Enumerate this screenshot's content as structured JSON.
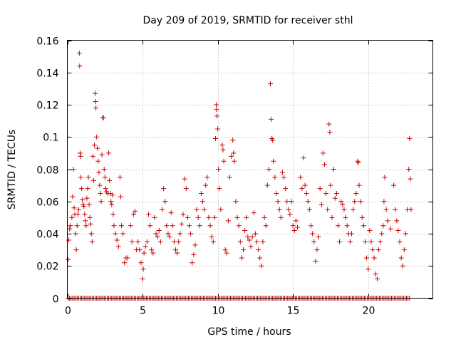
{
  "chart_data": {
    "type": "scatter",
    "title": "Day 209 of 2019, SRMTID for receiver sthl",
    "xlabel": "GPS time / hours",
    "ylabel": "SRMTID / TECUs",
    "xlim": [
      0,
      24.3
    ],
    "ylim": [
      0,
      0.16
    ],
    "xticks": [
      0,
      5,
      10,
      15,
      20
    ],
    "xtick_labels": [
      "0",
      "5",
      "10",
      "15",
      "20"
    ],
    "yticks": [
      0,
      0.02,
      0.04,
      0.06,
      0.08,
      0.1,
      0.12,
      0.14,
      0.16
    ],
    "ytick_labels": [
      "0",
      "0.02",
      "0.04",
      "0.06",
      "0.08",
      "0.1",
      "0.12",
      "0.14",
      "0.16"
    ],
    "grid": true,
    "marker": "+",
    "color": "#cc0000",
    "zero_baseline": {
      "x_start": 0.05,
      "x_end": 22.8,
      "step": 0.1,
      "y": 0
    },
    "series": [
      {
        "name": "sthl",
        "points": [
          [
            0.05,
            0.024
          ],
          [
            0.1,
            0.036
          ],
          [
            0.15,
            0.043
          ],
          [
            0.2,
            0.045
          ],
          [
            0.3,
            0.05
          ],
          [
            0.35,
            0.063
          ],
          [
            0.4,
            0.08
          ],
          [
            0.45,
            0.056
          ],
          [
            0.5,
            0.052
          ],
          [
            0.55,
            0.04
          ],
          [
            0.6,
            0.03
          ],
          [
            0.65,
            0.045
          ],
          [
            0.7,
            0.052
          ],
          [
            0.75,
            0.055
          ],
          [
            0.8,
            0.152
          ],
          [
            0.82,
            0.144
          ],
          [
            0.85,
            0.09
          ],
          [
            0.88,
            0.088
          ],
          [
            0.9,
            0.075
          ],
          [
            0.95,
            0.068
          ],
          [
            1.0,
            0.061
          ],
          [
            1.05,
            0.058
          ],
          [
            1.1,
            0.057
          ],
          [
            1.15,
            0.052
          ],
          [
            1.2,
            0.048
          ],
          [
            1.25,
            0.045
          ],
          [
            1.3,
            0.062
          ],
          [
            1.35,
            0.068
          ],
          [
            1.4,
            0.075
          ],
          [
            1.45,
            0.058
          ],
          [
            1.5,
            0.05
          ],
          [
            1.55,
            0.046
          ],
          [
            1.6,
            0.04
          ],
          [
            1.65,
            0.035
          ],
          [
            1.7,
            0.088
          ],
          [
            1.75,
            0.073
          ],
          [
            1.8,
            0.095
          ],
          [
            1.85,
            0.127
          ],
          [
            1.88,
            0.122
          ],
          [
            1.9,
            0.118
          ],
          [
            1.95,
            0.1
          ],
          [
            2.0,
            0.093
          ],
          [
            2.05,
            0.085
          ],
          [
            2.1,
            0.078
          ],
          [
            2.15,
            0.07
          ],
          [
            2.2,
            0.065
          ],
          [
            2.25,
            0.06
          ],
          [
            2.3,
            0.089
          ],
          [
            2.35,
            0.112
          ],
          [
            2.4,
            0.112
          ],
          [
            2.45,
            0.08
          ],
          [
            2.5,
            0.075
          ],
          [
            2.55,
            0.068
          ],
          [
            2.6,
            0.066
          ],
          [
            2.7,
            0.065
          ],
          [
            2.75,
            0.09
          ],
          [
            2.8,
            0.073
          ],
          [
            2.85,
            0.065
          ],
          [
            2.9,
            0.06
          ],
          [
            2.95,
            0.058
          ],
          [
            3.0,
            0.064
          ],
          [
            3.05,
            0.052
          ],
          [
            3.1,
            0.045
          ],
          [
            3.2,
            0.04
          ],
          [
            3.3,
            0.036
          ],
          [
            3.4,
            0.032
          ],
          [
            3.5,
            0.075
          ],
          [
            3.55,
            0.063
          ],
          [
            3.6,
            0.045
          ],
          [
            3.7,
            0.04
          ],
          [
            3.8,
            0.022
          ],
          [
            3.9,
            0.025
          ],
          [
            4.0,
            0.025
          ],
          [
            4.2,
            0.045
          ],
          [
            4.3,
            0.035
          ],
          [
            4.4,
            0.052
          ],
          [
            4.5,
            0.054
          ],
          [
            4.6,
            0.03
          ],
          [
            4.7,
            0.035
          ],
          [
            4.8,
            0.03
          ],
          [
            4.9,
            0.022
          ],
          [
            5.0,
            0.012
          ],
          [
            5.05,
            0.018
          ],
          [
            5.1,
            0.028
          ],
          [
            5.2,
            0.032
          ],
          [
            5.3,
            0.035
          ],
          [
            5.4,
            0.052
          ],
          [
            5.5,
            0.045
          ],
          [
            5.6,
            0.03
          ],
          [
            5.7,
            0.028
          ],
          [
            5.8,
            0.05
          ],
          [
            5.9,
            0.04
          ],
          [
            6.0,
            0.038
          ],
          [
            6.1,
            0.042
          ],
          [
            6.2,
            0.035
          ],
          [
            6.3,
            0.055
          ],
          [
            6.4,
            0.068
          ],
          [
            6.5,
            0.06
          ],
          [
            6.6,
            0.045
          ],
          [
            6.7,
            0.04
          ],
          [
            6.8,
            0.038
          ],
          [
            6.9,
            0.053
          ],
          [
            7.0,
            0.045
          ],
          [
            7.1,
            0.035
          ],
          [
            7.2,
            0.03
          ],
          [
            7.3,
            0.028
          ],
          [
            7.4,
            0.035
          ],
          [
            7.5,
            0.04
          ],
          [
            7.6,
            0.046
          ],
          [
            7.7,
            0.052
          ],
          [
            7.8,
            0.074
          ],
          [
            7.9,
            0.068
          ],
          [
            8.0,
            0.05
          ],
          [
            8.1,
            0.045
          ],
          [
            8.2,
            0.04
          ],
          [
            8.3,
            0.022
          ],
          [
            8.4,
            0.027
          ],
          [
            8.5,
            0.033
          ],
          [
            8.6,
            0.055
          ],
          [
            8.7,
            0.05
          ],
          [
            8.8,
            0.045
          ],
          [
            8.9,
            0.065
          ],
          [
            9.0,
            0.06
          ],
          [
            9.1,
            0.055
          ],
          [
            9.2,
            0.07
          ],
          [
            9.3,
            0.075
          ],
          [
            9.4,
            0.05
          ],
          [
            9.5,
            0.045
          ],
          [
            9.6,
            0.038
          ],
          [
            9.7,
            0.035
          ],
          [
            9.8,
            0.05
          ],
          [
            9.85,
            0.099
          ],
          [
            9.9,
            0.12
          ],
          [
            9.92,
            0.117
          ],
          [
            9.95,
            0.113
          ],
          [
            10.0,
            0.105
          ],
          [
            10.05,
            0.08
          ],
          [
            10.1,
            0.068
          ],
          [
            10.2,
            0.055
          ],
          [
            10.3,
            0.095
          ],
          [
            10.35,
            0.092
          ],
          [
            10.4,
            0.085
          ],
          [
            10.5,
            0.03
          ],
          [
            10.6,
            0.028
          ],
          [
            10.7,
            0.048
          ],
          [
            10.8,
            0.075
          ],
          [
            10.9,
            0.088
          ],
          [
            11.0,
            0.098
          ],
          [
            11.05,
            0.09
          ],
          [
            11.1,
            0.085
          ],
          [
            11.2,
            0.06
          ],
          [
            11.3,
            0.05
          ],
          [
            11.4,
            0.045
          ],
          [
            11.5,
            0.035
          ],
          [
            11.6,
            0.025
          ],
          [
            11.7,
            0.03
          ],
          [
            11.8,
            0.042
          ],
          [
            11.9,
            0.05
          ],
          [
            12.0,
            0.038
          ],
          [
            12.1,
            0.036
          ],
          [
            12.2,
            0.032
          ],
          [
            12.3,
            0.038
          ],
          [
            12.4,
            0.053
          ],
          [
            12.5,
            0.04
          ],
          [
            12.6,
            0.035
          ],
          [
            12.7,
            0.03
          ],
          [
            12.8,
            0.025
          ],
          [
            12.9,
            0.02
          ],
          [
            13.0,
            0.035
          ],
          [
            13.1,
            0.05
          ],
          [
            13.2,
            0.045
          ],
          [
            13.3,
            0.07
          ],
          [
            13.4,
            0.08
          ],
          [
            13.5,
            0.133
          ],
          [
            13.55,
            0.111
          ],
          [
            13.6,
            0.099
          ],
          [
            13.65,
            0.098
          ],
          [
            13.7,
            0.085
          ],
          [
            13.8,
            0.075
          ],
          [
            13.9,
            0.065
          ],
          [
            14.0,
            0.06
          ],
          [
            14.1,
            0.055
          ],
          [
            14.2,
            0.05
          ],
          [
            14.3,
            0.078
          ],
          [
            14.4,
            0.075
          ],
          [
            14.5,
            0.068
          ],
          [
            14.6,
            0.06
          ],
          [
            14.7,
            0.055
          ],
          [
            14.8,
            0.052
          ],
          [
            14.9,
            0.06
          ],
          [
            15.0,
            0.045
          ],
          [
            15.1,
            0.042
          ],
          [
            15.2,
            0.048
          ],
          [
            15.3,
            0.044
          ],
          [
            15.5,
            0.075
          ],
          [
            15.6,
            0.068
          ],
          [
            15.7,
            0.087
          ],
          [
            15.8,
            0.07
          ],
          [
            15.9,
            0.065
          ],
          [
            16.0,
            0.06
          ],
          [
            16.1,
            0.055
          ],
          [
            16.2,
            0.045
          ],
          [
            16.3,
            0.04
          ],
          [
            16.4,
            0.035
          ],
          [
            16.5,
            0.023
          ],
          [
            16.6,
            0.03
          ],
          [
            16.7,
            0.038
          ],
          [
            16.8,
            0.068
          ],
          [
            16.9,
            0.058
          ],
          [
            17.0,
            0.09
          ],
          [
            17.1,
            0.083
          ],
          [
            17.2,
            0.065
          ],
          [
            17.3,
            0.055
          ],
          [
            17.4,
            0.108
          ],
          [
            17.45,
            0.103
          ],
          [
            17.5,
            0.07
          ],
          [
            17.6,
            0.05
          ],
          [
            17.7,
            0.08
          ],
          [
            17.8,
            0.062
          ],
          [
            17.9,
            0.065
          ],
          [
            18.0,
            0.045
          ],
          [
            18.1,
            0.035
          ],
          [
            18.2,
            0.06
          ],
          [
            18.3,
            0.058
          ],
          [
            18.4,
            0.055
          ],
          [
            18.5,
            0.05
          ],
          [
            18.6,
            0.045
          ],
          [
            18.7,
            0.04
          ],
          [
            18.8,
            0.035
          ],
          [
            18.9,
            0.04
          ],
          [
            19.0,
            0.055
          ],
          [
            19.1,
            0.06
          ],
          [
            19.2,
            0.065
          ],
          [
            19.3,
            0.085
          ],
          [
            19.35,
            0.084
          ],
          [
            19.4,
            0.07
          ],
          [
            19.5,
            0.06
          ],
          [
            19.6,
            0.05
          ],
          [
            19.7,
            0.045
          ],
          [
            19.8,
            0.035
          ],
          [
            19.9,
            0.025
          ],
          [
            20.0,
            0.018
          ],
          [
            20.1,
            0.042
          ],
          [
            20.2,
            0.035
          ],
          [
            20.3,
            0.03
          ],
          [
            20.4,
            0.025
          ],
          [
            20.5,
            0.015
          ],
          [
            20.6,
            0.012
          ],
          [
            20.7,
            0.03
          ],
          [
            20.8,
            0.035
          ],
          [
            20.9,
            0.04
          ],
          [
            21.0,
            0.045
          ],
          [
            21.05,
            0.06
          ],
          [
            21.1,
            0.075
          ],
          [
            21.2,
            0.055
          ],
          [
            21.3,
            0.048
          ],
          [
            21.5,
            0.043
          ],
          [
            21.7,
            0.07
          ],
          [
            21.8,
            0.055
          ],
          [
            21.9,
            0.048
          ],
          [
            22.0,
            0.042
          ],
          [
            22.1,
            0.035
          ],
          [
            22.2,
            0.025
          ],
          [
            22.3,
            0.02
          ],
          [
            22.4,
            0.03
          ],
          [
            22.5,
            0.04
          ],
          [
            22.6,
            0.055
          ],
          [
            22.7,
            0.08
          ],
          [
            22.75,
            0.099
          ],
          [
            22.8,
            0.074
          ],
          [
            22.85,
            0.055
          ]
        ]
      }
    ]
  }
}
